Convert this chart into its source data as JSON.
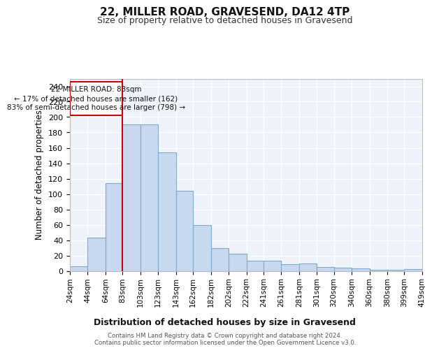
{
  "title": "22, MILLER ROAD, GRAVESEND, DA12 4TP",
  "subtitle": "Size of property relative to detached houses in Gravesend",
  "xlabel": "Distribution of detached houses by size in Gravesend",
  "ylabel": "Number of detached properties",
  "bar_color": "#c8d8ee",
  "bar_edge_color": "#7eaacf",
  "background_color": "#eef2fb",
  "grid_color": "#ffffff",
  "vline_x": 83,
  "vline_color": "#cc0000",
  "annotation_line1": "22 MILLER ROAD: 83sqm",
  "annotation_line2": "← 17% of detached houses are smaller (162)",
  "annotation_line3": "83% of semi-detached houses are larger (798) →",
  "annotation_box_color": "#cc0000",
  "footer": "Contains HM Land Registry data © Crown copyright and database right 2024.\nContains public sector information licensed under the Open Government Licence v3.0.",
  "bin_edges": [
    24,
    44,
    64,
    83,
    103,
    123,
    143,
    162,
    182,
    202,
    222,
    241,
    261,
    281,
    301,
    320,
    340,
    360,
    380,
    399,
    419
  ],
  "bar_heights": [
    6,
    43,
    114,
    190,
    190,
    154,
    104,
    60,
    30,
    22,
    13,
    13,
    9,
    10,
    5,
    4,
    3,
    1,
    1,
    2
  ],
  "ylim": [
    0,
    250
  ],
  "yticks": [
    0,
    20,
    40,
    60,
    80,
    100,
    120,
    140,
    160,
    180,
    200,
    220,
    240
  ],
  "figsize": [
    6.0,
    5.0
  ],
  "dpi": 100
}
